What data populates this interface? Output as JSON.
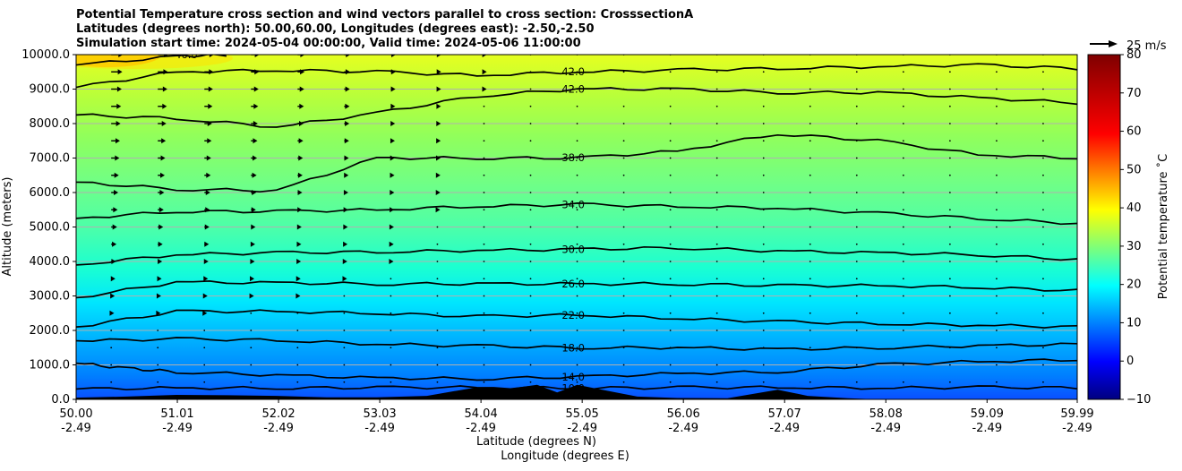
{
  "titles": [
    "Potential Temperature cross section and wind vectors parallel to cross section: CrosssectionA",
    "Latitudes (degrees north): 50.00,60.00, Longitudes (degrees east): -2.50,-2.50",
    "Simulation start time: 2024-05-04 00:00:00, Valid time: 2024-05-06 11:00:00"
  ],
  "chart_data": {
    "type": "heatmap",
    "subtype": "filled contour cross section with contour lines and wind vectors",
    "ylabel": "Altitude (meters)",
    "xlabel_lat": "Latitude (degrees N)",
    "xlabel_lon": "Longitude (degrees E)",
    "ylim": [
      0,
      10000
    ],
    "y_ticks": [
      "0.0",
      "1000.0",
      "2000.0",
      "3000.0",
      "4000.0",
      "5000.0",
      "6000.0",
      "7000.0",
      "8000.0",
      "9000.0",
      "10000.0"
    ],
    "x_ticks_lat": [
      "50.00",
      "51.01",
      "52.02",
      "53.03",
      "54.04",
      "55.05",
      "56.06",
      "57.07",
      "58.08",
      "59.09",
      "59.99"
    ],
    "x_ticks_lon": [
      "-2.49",
      "-2.49",
      "-2.49",
      "-2.49",
      "-2.49",
      "-2.49",
      "-2.49",
      "-2.49",
      "-2.49",
      "-2.49",
      "-2.49"
    ],
    "xlim_lat": [
      50.0,
      59.99
    ],
    "colormap": "jet",
    "colorbar": {
      "label": "Potential temperature ˚C",
      "range": [
        -10,
        80
      ],
      "ticks": [
        "−10",
        "0",
        "10",
        "20",
        "30",
        "40",
        "50",
        "60",
        "70",
        "80"
      ]
    },
    "contour_labels": [
      "10.0",
      "14.0",
      "18.0",
      "22.0",
      "26.0",
      "30.0",
      "34.0",
      "38.0",
      "42.0",
      "46.0"
    ],
    "contour_lines": [
      {
        "level": 10,
        "label": "10.0",
        "points": [
          [
            50.0,
            300
          ],
          [
            51.0,
            330
          ],
          [
            52.0,
            330
          ],
          [
            53.0,
            340
          ],
          [
            54.0,
            350
          ],
          [
            55.0,
            330
          ],
          [
            56.0,
            340
          ],
          [
            57.0,
            350
          ],
          [
            58.0,
            330
          ],
          [
            59.0,
            350
          ],
          [
            59.99,
            340
          ]
        ]
      },
      {
        "level": 14,
        "label": "14.0",
        "points": [
          [
            50.0,
            1050
          ],
          [
            50.5,
            900
          ],
          [
            51.0,
            800
          ],
          [
            52.0,
            700
          ],
          [
            53.0,
            620
          ],
          [
            54.0,
            600
          ],
          [
            55.0,
            650
          ],
          [
            56.0,
            750
          ],
          [
            57.0,
            800
          ],
          [
            58.0,
            1000
          ],
          [
            59.0,
            1100
          ],
          [
            59.99,
            1150
          ]
        ]
      },
      {
        "level": 18,
        "label": "18.0",
        "points": [
          [
            50.0,
            1700
          ],
          [
            51.0,
            1750
          ],
          [
            52.0,
            1720
          ],
          [
            53.0,
            1600
          ],
          [
            54.0,
            1550
          ],
          [
            55.0,
            1500
          ],
          [
            56.0,
            1500
          ],
          [
            57.0,
            1450
          ],
          [
            58.0,
            1500
          ],
          [
            59.0,
            1550
          ],
          [
            59.99,
            1600
          ]
        ]
      },
      {
        "level": 22,
        "label": "22.0",
        "points": [
          [
            50.0,
            2100
          ],
          [
            51.0,
            2550
          ],
          [
            52.0,
            2550
          ],
          [
            53.0,
            2500
          ],
          [
            54.0,
            2400
          ],
          [
            55.0,
            2450
          ],
          [
            56.0,
            2350
          ],
          [
            57.0,
            2250
          ],
          [
            58.0,
            2200
          ],
          [
            59.0,
            2150
          ],
          [
            59.99,
            2100
          ]
        ]
      },
      {
        "level": 26,
        "label": "26.0",
        "points": [
          [
            50.0,
            2950
          ],
          [
            51.0,
            3400
          ],
          [
            52.0,
            3380
          ],
          [
            53.0,
            3350
          ],
          [
            54.0,
            3350
          ],
          [
            55.0,
            3350
          ],
          [
            56.0,
            3350
          ],
          [
            57.0,
            3300
          ],
          [
            58.0,
            3300
          ],
          [
            59.0,
            3250
          ],
          [
            59.99,
            3150
          ]
        ]
      },
      {
        "level": 30,
        "label": "30.0",
        "points": [
          [
            50.0,
            3900
          ],
          [
            51.0,
            4200
          ],
          [
            52.0,
            4250
          ],
          [
            53.0,
            4280
          ],
          [
            54.0,
            4320
          ],
          [
            55.0,
            4350
          ],
          [
            56.0,
            4400
          ],
          [
            57.0,
            4300
          ],
          [
            58.0,
            4250
          ],
          [
            59.0,
            4200
          ],
          [
            59.99,
            4050
          ]
        ]
      },
      {
        "level": 34,
        "label": "34.0",
        "points": [
          [
            50.0,
            5250
          ],
          [
            51.0,
            5450
          ],
          [
            52.0,
            5450
          ],
          [
            53.0,
            5500
          ],
          [
            54.0,
            5600
          ],
          [
            55.0,
            5650
          ],
          [
            56.0,
            5600
          ],
          [
            57.0,
            5550
          ],
          [
            58.0,
            5400
          ],
          [
            59.0,
            5250
          ],
          [
            59.99,
            5100
          ]
        ]
      },
      {
        "level": 38,
        "label": "38.0",
        "points": [
          [
            50.0,
            6300
          ],
          [
            51.0,
            6100
          ],
          [
            52.0,
            6050
          ],
          [
            53.0,
            7000
          ],
          [
            54.0,
            7000
          ],
          [
            55.0,
            7000
          ],
          [
            56.0,
            7200
          ],
          [
            57.0,
            7700
          ],
          [
            58.0,
            7500
          ],
          [
            59.0,
            7100
          ],
          [
            59.99,
            7000
          ]
        ]
      },
      {
        "level": 42,
        "label": "42.0",
        "points": [
          [
            50.0,
            8250
          ],
          [
            51.0,
            8150
          ],
          [
            52.0,
            7900
          ],
          [
            53.0,
            8300
          ],
          [
            54.0,
            8800
          ],
          [
            55.0,
            9000
          ],
          [
            56.0,
            9000
          ],
          [
            57.0,
            8900
          ],
          [
            58.0,
            8900
          ],
          [
            59.0,
            8750
          ],
          [
            59.99,
            8600
          ]
        ]
      },
      {
        "level": 42,
        "label": "42.0",
        "points": [
          [
            50.0,
            9050
          ],
          [
            51.0,
            9500
          ],
          [
            52.0,
            9550
          ],
          [
            53.0,
            9500
          ],
          [
            54.0,
            9400
          ],
          [
            55.0,
            9500
          ],
          [
            56.0,
            9550
          ],
          [
            57.0,
            9600
          ],
          [
            58.0,
            9650
          ],
          [
            59.0,
            9700
          ],
          [
            59.99,
            9600
          ]
        ]
      },
      {
        "level": 46,
        "label": "46.0",
        "points": [
          [
            50.0,
            9700
          ],
          [
            51.0,
            9950
          ],
          [
            51.5,
            10000
          ]
        ]
      }
    ],
    "terrain": [
      [
        50.0,
        50
      ],
      [
        50.5,
        80
      ],
      [
        51.0,
        130
      ],
      [
        51.5,
        120
      ],
      [
        52.0,
        100
      ],
      [
        52.5,
        60
      ],
      [
        53.0,
        60
      ],
      [
        53.5,
        100
      ],
      [
        54.0,
        350
      ],
      [
        54.3,
        300
      ],
      [
        54.6,
        420
      ],
      [
        54.8,
        200
      ],
      [
        55.0,
        420
      ],
      [
        55.3,
        250
      ],
      [
        55.6,
        80
      ],
      [
        56.0,
        40
      ],
      [
        56.5,
        30
      ],
      [
        57.0,
        280
      ],
      [
        57.3,
        100
      ],
      [
        57.7,
        30
      ],
      [
        58.0,
        0
      ],
      [
        59.99,
        0
      ]
    ],
    "wind_reference": {
      "label": "25 m/s",
      "speed": 25
    }
  }
}
